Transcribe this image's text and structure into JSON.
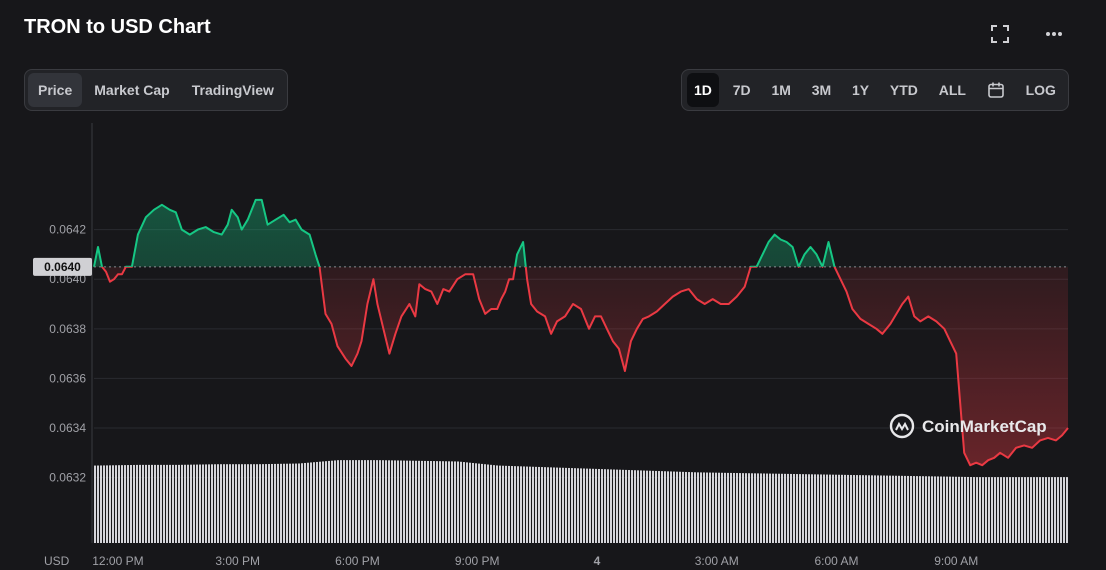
{
  "title": "TRON to USD Chart",
  "header_icons": [
    "fullscreen-icon",
    "more-icon"
  ],
  "view_tabs": [
    {
      "label": "Price",
      "active": true
    },
    {
      "label": "Market Cap",
      "active": false
    },
    {
      "label": "TradingView",
      "active": false
    }
  ],
  "range_tabs": [
    {
      "label": "1D",
      "active": true
    },
    {
      "label": "7D",
      "active": false
    },
    {
      "label": "1M",
      "active": false
    },
    {
      "label": "3M",
      "active": false
    },
    {
      "label": "1Y",
      "active": false
    },
    {
      "label": "YTD",
      "active": false
    },
    {
      "label": "ALL",
      "active": false
    }
  ],
  "log_label": "LOG",
  "watermark": "CoinMarketCap",
  "colors": {
    "up": "#16c784",
    "down": "#ea3943",
    "background": "#17171a"
  },
  "chart_data": {
    "type": "line",
    "currency_label": "USD",
    "ylim": [
      0.06315,
      0.06463
    ],
    "yticks": [
      0.0632,
      0.0634,
      0.0636,
      0.0638,
      0.064,
      0.0642
    ],
    "ytick_labels": [
      "0.0632",
      "0.0634",
      "0.0636",
      "0.0638",
      "0.0640",
      "0.0642"
    ],
    "reference_price": 0.06405,
    "reference_label": "0.0640",
    "x_range": [
      11.4,
      35.8
    ],
    "xticks": [
      12,
      15,
      18,
      21,
      24,
      27,
      30,
      33
    ],
    "xtick_labels": [
      "12:00 PM",
      "3:00 PM",
      "6:00 PM",
      "9:00 PM",
      "4",
      "3:00 AM",
      "6:00 AM",
      "9:00 AM"
    ],
    "grid": true,
    "price": [
      [
        11.4,
        0.06405
      ],
      [
        11.5,
        0.06413
      ],
      [
        11.6,
        0.06405
      ],
      [
        11.7,
        0.06403
      ],
      [
        11.8,
        0.06399
      ],
      [
        11.9,
        0.064
      ],
      [
        12.0,
        0.06402
      ],
      [
        12.1,
        0.06402
      ],
      [
        12.2,
        0.06405
      ],
      [
        12.35,
        0.06405
      ],
      [
        12.5,
        0.06418
      ],
      [
        12.7,
        0.06425
      ],
      [
        12.9,
        0.06428
      ],
      [
        13.1,
        0.0643
      ],
      [
        13.3,
        0.06428
      ],
      [
        13.45,
        0.06427
      ],
      [
        13.6,
        0.0642
      ],
      [
        13.8,
        0.06418
      ],
      [
        14.0,
        0.0642
      ],
      [
        14.2,
        0.06421
      ],
      [
        14.4,
        0.06419
      ],
      [
        14.6,
        0.06418
      ],
      [
        14.75,
        0.06422
      ],
      [
        14.85,
        0.06428
      ],
      [
        15.0,
        0.06425
      ],
      [
        15.1,
        0.0642
      ],
      [
        15.25,
        0.06424
      ],
      [
        15.45,
        0.06432
      ],
      [
        15.6,
        0.06432
      ],
      [
        15.75,
        0.06422
      ],
      [
        15.95,
        0.06424
      ],
      [
        16.15,
        0.06426
      ],
      [
        16.3,
        0.06423
      ],
      [
        16.45,
        0.06424
      ],
      [
        16.6,
        0.0642
      ],
      [
        16.8,
        0.06418
      ],
      [
        16.95,
        0.0641
      ],
      [
        17.05,
        0.06405
      ],
      [
        17.2,
        0.06386
      ],
      [
        17.35,
        0.06382
      ],
      [
        17.5,
        0.06373
      ],
      [
        17.7,
        0.06368
      ],
      [
        17.85,
        0.06365
      ],
      [
        18.0,
        0.0637
      ],
      [
        18.1,
        0.06375
      ],
      [
        18.25,
        0.0639
      ],
      [
        18.4,
        0.064
      ],
      [
        18.5,
        0.0639
      ],
      [
        18.65,
        0.0638
      ],
      [
        18.8,
        0.0637
      ],
      [
        18.95,
        0.06378
      ],
      [
        19.1,
        0.06385
      ],
      [
        19.3,
        0.0639
      ],
      [
        19.45,
        0.06385
      ],
      [
        19.55,
        0.06398
      ],
      [
        19.7,
        0.06396
      ],
      [
        19.85,
        0.06395
      ],
      [
        20.0,
        0.0639
      ],
      [
        20.15,
        0.06396
      ],
      [
        20.3,
        0.06395
      ],
      [
        20.5,
        0.064
      ],
      [
        20.7,
        0.06402
      ],
      [
        20.9,
        0.06402
      ],
      [
        21.05,
        0.06392
      ],
      [
        21.2,
        0.06386
      ],
      [
        21.35,
        0.06388
      ],
      [
        21.5,
        0.06388
      ],
      [
        21.6,
        0.06392
      ],
      [
        21.7,
        0.06395
      ],
      [
        21.8,
        0.064
      ],
      [
        21.9,
        0.064
      ],
      [
        22.0,
        0.0641
      ],
      [
        22.15,
        0.06415
      ],
      [
        22.25,
        0.064
      ],
      [
        22.35,
        0.0639
      ],
      [
        22.5,
        0.06387
      ],
      [
        22.7,
        0.06385
      ],
      [
        22.85,
        0.06378
      ],
      [
        23.0,
        0.06383
      ],
      [
        23.2,
        0.06385
      ],
      [
        23.4,
        0.0639
      ],
      [
        23.6,
        0.06388
      ],
      [
        23.8,
        0.0638
      ],
      [
        23.95,
        0.06385
      ],
      [
        24.1,
        0.06385
      ],
      [
        24.25,
        0.0638
      ],
      [
        24.4,
        0.06375
      ],
      [
        24.55,
        0.06372
      ],
      [
        24.7,
        0.06363
      ],
      [
        24.85,
        0.06375
      ],
      [
        25.0,
        0.0638
      ],
      [
        25.15,
        0.06384
      ],
      [
        25.3,
        0.06385
      ],
      [
        25.5,
        0.06387
      ],
      [
        25.7,
        0.0639
      ],
      [
        25.9,
        0.06393
      ],
      [
        26.1,
        0.06395
      ],
      [
        26.3,
        0.06396
      ],
      [
        26.5,
        0.06392
      ],
      [
        26.7,
        0.0639
      ],
      [
        26.9,
        0.06392
      ],
      [
        27.1,
        0.0639
      ],
      [
        27.3,
        0.0639
      ],
      [
        27.5,
        0.06393
      ],
      [
        27.7,
        0.06397
      ],
      [
        27.85,
        0.06405
      ],
      [
        28.0,
        0.06405
      ],
      [
        28.15,
        0.0641
      ],
      [
        28.3,
        0.06415
      ],
      [
        28.45,
        0.06418
      ],
      [
        28.6,
        0.06416
      ],
      [
        28.75,
        0.06415
      ],
      [
        28.9,
        0.06413
      ],
      [
        29.05,
        0.06405
      ],
      [
        29.2,
        0.0641
      ],
      [
        29.35,
        0.06413
      ],
      [
        29.5,
        0.0641
      ],
      [
        29.65,
        0.06405
      ],
      [
        29.8,
        0.06415
      ],
      [
        29.95,
        0.06405
      ],
      [
        30.1,
        0.064
      ],
      [
        30.25,
        0.06395
      ],
      [
        30.4,
        0.06388
      ],
      [
        30.6,
        0.06384
      ],
      [
        30.8,
        0.06382
      ],
      [
        31.0,
        0.0638
      ],
      [
        31.15,
        0.06378
      ],
      [
        31.35,
        0.06382
      ],
      [
        31.5,
        0.06386
      ],
      [
        31.65,
        0.0639
      ],
      [
        31.8,
        0.06393
      ],
      [
        31.95,
        0.06385
      ],
      [
        32.1,
        0.06383
      ],
      [
        32.3,
        0.06385
      ],
      [
        32.5,
        0.06383
      ],
      [
        32.7,
        0.0638
      ],
      [
        32.85,
        0.06375
      ],
      [
        33.0,
        0.0637
      ],
      [
        33.1,
        0.0635
      ],
      [
        33.2,
        0.0633
      ],
      [
        33.35,
        0.06325
      ],
      [
        33.5,
        0.06326
      ],
      [
        33.65,
        0.06325
      ],
      [
        33.8,
        0.06327
      ],
      [
        33.95,
        0.06328
      ],
      [
        34.1,
        0.0633
      ],
      [
        34.3,
        0.06328
      ],
      [
        34.5,
        0.06332
      ],
      [
        34.7,
        0.06333
      ],
      [
        34.9,
        0.06332
      ],
      [
        35.1,
        0.06335
      ],
      [
        35.3,
        0.06336
      ],
      [
        35.5,
        0.06335
      ],
      [
        35.65,
        0.06337
      ],
      [
        35.8,
        0.0634
      ]
    ],
    "volume": [
      [
        11.4,
        0.58
      ],
      [
        12.5,
        0.59
      ],
      [
        13.5,
        0.59
      ],
      [
        14.5,
        0.6
      ],
      [
        15.5,
        0.6
      ],
      [
        16.5,
        0.61
      ],
      [
        17.5,
        0.66
      ],
      [
        18.5,
        0.66
      ],
      [
        19.5,
        0.65
      ],
      [
        20.5,
        0.64
      ],
      [
        21.5,
        0.58
      ],
      [
        22.5,
        0.56
      ],
      [
        23.5,
        0.54
      ],
      [
        24.5,
        0.52
      ],
      [
        25.5,
        0.5
      ],
      [
        26.5,
        0.48
      ],
      [
        27.5,
        0.47
      ],
      [
        28.5,
        0.46
      ],
      [
        29.5,
        0.45
      ],
      [
        30.5,
        0.44
      ],
      [
        31.5,
        0.43
      ],
      [
        32.5,
        0.42
      ],
      [
        33.5,
        0.41
      ],
      [
        34.5,
        0.41
      ],
      [
        35.8,
        0.41
      ]
    ]
  }
}
